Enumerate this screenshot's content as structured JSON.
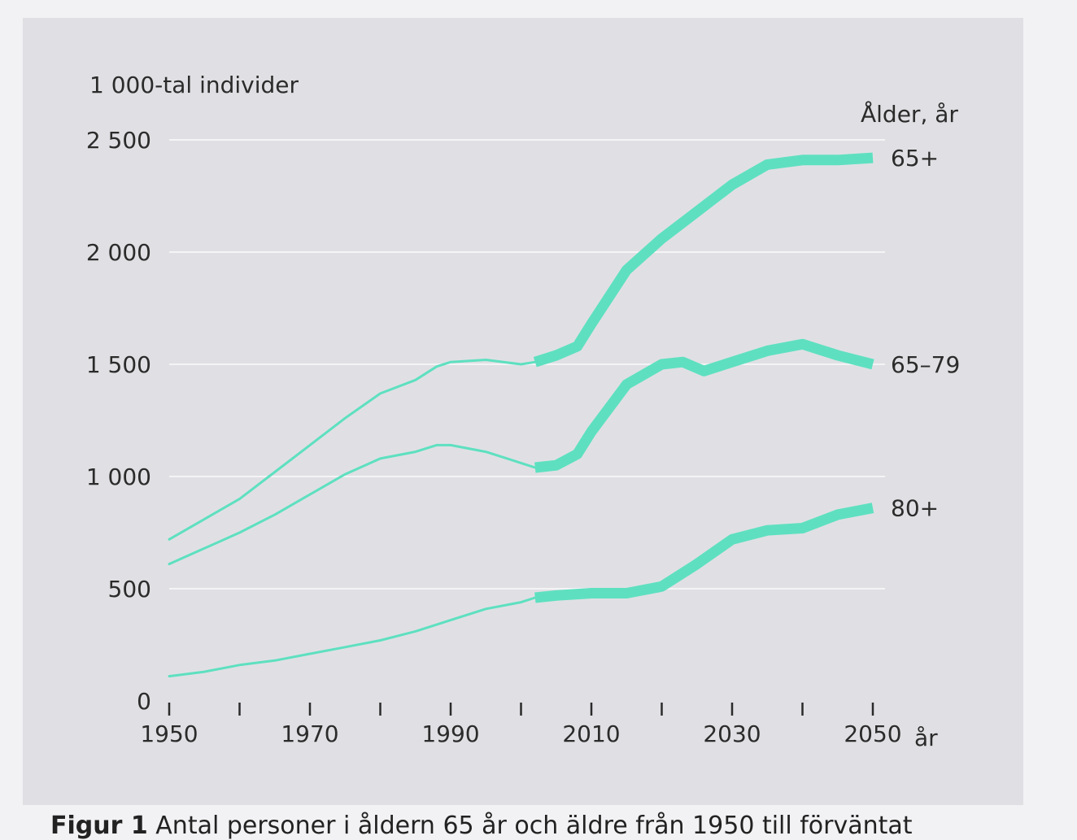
{
  "colors": {
    "series": "#5ee0c0",
    "grid": "#f4f4f6",
    "text": "#2b2b2b",
    "panel": "#e0e0e4"
  },
  "caption": {
    "label": "Figur 1",
    "text": "Antal personer i åldern 65 år och äldre från 1950 till förväntat"
  },
  "chart_data": {
    "type": "line",
    "title": "",
    "ylabel": "1 000-tal individer",
    "xlabel": "år",
    "legend_title": "Ålder, år",
    "xlim": [
      1950,
      2050
    ],
    "ylim": [
      0,
      2500
    ],
    "x_ticks": [
      1950,
      1960,
      1970,
      1980,
      1990,
      2000,
      2010,
      2020,
      2030,
      2040,
      2050
    ],
    "x_tick_labels": [
      "1950",
      "",
      "1970",
      "",
      "1990",
      "",
      "2010",
      "",
      "2030",
      "",
      "2050"
    ],
    "y_ticks": [
      0,
      500,
      1000,
      1500,
      2000,
      2500
    ],
    "y_tick_labels": [
      "0",
      "500",
      "1 000",
      "1 500",
      "2 000",
      "2 500"
    ],
    "forecast_from": 2002,
    "series": [
      {
        "name": "65+",
        "x": [
          1950,
          1955,
          1960,
          1965,
          1970,
          1975,
          1980,
          1985,
          1988,
          1990,
          1995,
          2000,
          2002,
          2005,
          2008,
          2010,
          2015,
          2020,
          2025,
          2030,
          2035,
          2040,
          2045,
          2050
        ],
        "y": [
          720,
          810,
          900,
          1020,
          1140,
          1260,
          1370,
          1430,
          1490,
          1510,
          1520,
          1500,
          1510,
          1540,
          1580,
          1680,
          1920,
          2060,
          2180,
          2300,
          2390,
          2410,
          2410,
          2420
        ]
      },
      {
        "name": "65–79",
        "x": [
          1950,
          1955,
          1960,
          1965,
          1970,
          1975,
          1980,
          1985,
          1988,
          1990,
          1995,
          2000,
          2002,
          2005,
          2008,
          2010,
          2015,
          2020,
          2023,
          2026,
          2030,
          2035,
          2040,
          2045,
          2050
        ],
        "y": [
          610,
          680,
          750,
          830,
          920,
          1010,
          1080,
          1110,
          1140,
          1140,
          1110,
          1060,
          1040,
          1050,
          1100,
          1200,
          1410,
          1500,
          1510,
          1470,
          1510,
          1560,
          1590,
          1540,
          1500
        ]
      },
      {
        "name": "80+",
        "x": [
          1950,
          1955,
          1960,
          1965,
          1970,
          1975,
          1980,
          1985,
          1990,
          1995,
          2000,
          2002,
          2005,
          2010,
          2015,
          2020,
          2025,
          2030,
          2035,
          2040,
          2045,
          2050
        ],
        "y": [
          110,
          130,
          160,
          180,
          210,
          240,
          270,
          310,
          360,
          410,
          440,
          460,
          470,
          480,
          480,
          510,
          610,
          720,
          760,
          770,
          830,
          860
        ]
      }
    ]
  }
}
